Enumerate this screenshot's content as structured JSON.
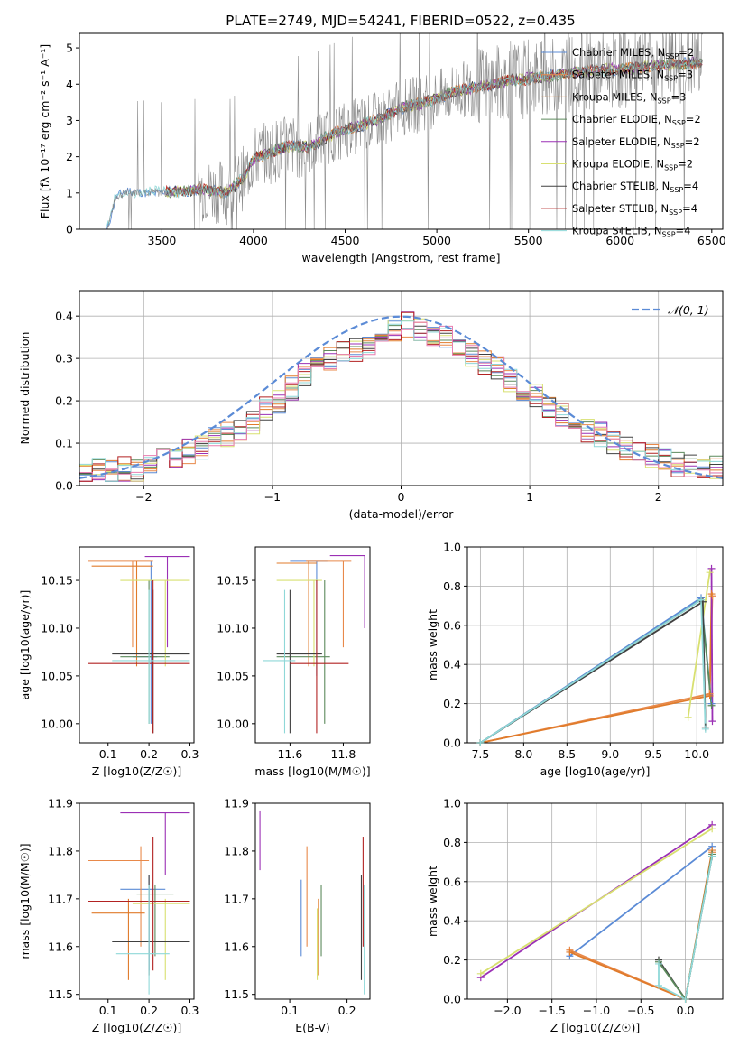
{
  "figure": {
    "title": "PLATE=2749, MJD=54241, FIBERID=0522, z=0.435"
  },
  "models": [
    {
      "name": "Chabrier MILES",
      "nssp": "2",
      "color": "#5b8bd6"
    },
    {
      "name": "Salpeter MILES",
      "nssp": "3",
      "color": "#e8894a"
    },
    {
      "name": "Kroupa MILES",
      "nssp": "3",
      "color": "#e07b2b"
    },
    {
      "name": "Chabrier ELODIE",
      "nssp": "2",
      "color": "#5c8a5c"
    },
    {
      "name": "Salpeter ELODIE",
      "nssp": "2",
      "color": "#9b30b5"
    },
    {
      "name": "Kroupa ELODIE",
      "nssp": "2",
      "color": "#d8e070"
    },
    {
      "name": "Chabrier STELIB",
      "nssp": "4",
      "color": "#404040"
    },
    {
      "name": "Salpeter STELIB",
      "nssp": "4",
      "color": "#b22222"
    },
    {
      "name": "Kroupa STELIB",
      "nssp": "4",
      "color": "#8fd8d8"
    }
  ],
  "extra_colors": {
    "pink": "#e87fb0",
    "teal": "#5fb3b3",
    "lime": "#b8d84a",
    "data": "#808080",
    "gauss": "#5b8bd6",
    "grid": "#b0b0b0"
  },
  "legend_template": {
    "nssp_sub": "SSP",
    "nssp_prefix": "N",
    "nssp_eq": "="
  },
  "chart_data": [
    {
      "id": "spectrum",
      "type": "line",
      "xlabel": "wavelength [Angstrom, rest frame]",
      "ylabel": "Flux [fλ 10⁻¹⁷ erg cm⁻² s⁻¹ A⁻¹]",
      "xlim": [
        3050,
        6560
      ],
      "ylim": [
        0,
        5.4
      ],
      "xticks": [
        3500,
        4000,
        4500,
        5000,
        5500,
        6000,
        6500
      ],
      "yticks": [
        0,
        1,
        2,
        3,
        4,
        5
      ],
      "legend": "upper right",
      "continuum_x": [
        3200,
        3250,
        3300,
        3400,
        3500,
        3600,
        3700,
        3800,
        3850,
        3900,
        3950,
        4000,
        4100,
        4200,
        4300,
        4400,
        4500,
        4600,
        4700,
        4800,
        4900,
        5000,
        5100,
        5200,
        5300,
        5400,
        5500,
        5600,
        5700,
        5800,
        5900,
        6000,
        6100,
        6200,
        6300,
        6400
      ],
      "continuum_y": [
        0,
        0.9,
        1.0,
        1.05,
        1.0,
        1.05,
        1.1,
        1.05,
        1.0,
        1.2,
        1.45,
        1.95,
        2.15,
        2.3,
        2.25,
        2.55,
        2.75,
        2.9,
        3.05,
        3.35,
        3.45,
        3.6,
        3.8,
        3.9,
        4.0,
        4.1,
        4.15,
        4.2,
        4.3,
        4.35,
        4.4,
        4.4,
        4.45,
        4.5,
        4.55,
        4.6
      ]
    },
    {
      "id": "residuals",
      "type": "step",
      "xlabel": "(data-model)/error",
      "ylabel": "Normed distribution",
      "xlim": [
        -2.5,
        2.5
      ],
      "ylim": [
        0,
        0.46
      ],
      "xticks": [
        -2,
        -1,
        0,
        1,
        2
      ],
      "yticks": [
        0,
        0.1,
        0.2,
        0.3,
        0.4
      ],
      "grid": true,
      "legend_label": "𝒩(0, 1)",
      "bins": 50,
      "model_hist": [
        0.035,
        0.04,
        0.03,
        0.04,
        0.035,
        0.045,
        0.06,
        0.07,
        0.08,
        0.09,
        0.11,
        0.12,
        0.13,
        0.15,
        0.18,
        0.2,
        0.23,
        0.26,
        0.28,
        0.3,
        0.31,
        0.32,
        0.33,
        0.35,
        0.37,
        0.38,
        0.37,
        0.36,
        0.35,
        0.33,
        0.31,
        0.29,
        0.28,
        0.25,
        0.23,
        0.21,
        0.19,
        0.17,
        0.15,
        0.13,
        0.12,
        0.1,
        0.09,
        0.08,
        0.07,
        0.06,
        0.05,
        0.045,
        0.04,
        0.04
      ]
    },
    {
      "id": "age_vs_Z",
      "type": "errorbar",
      "xlabel": "Z [log10(Z/Z☉)]",
      "ylabel": "age  [log10(age/yr)]",
      "xlim": [
        0.03,
        0.31
      ],
      "ylim": [
        9.98,
        10.185
      ],
      "xticks": [
        0.1,
        0.2,
        0.3
      ],
      "yticks": [
        10.0,
        10.05,
        10.1,
        10.15
      ],
      "points": [
        {
          "m": 0,
          "x": 0.205,
          "y": 10.07,
          "x0": 0.16,
          "x1": 0.22,
          "y0": 10.0,
          "y1": 10.17
        },
        {
          "m": 1,
          "x": 0.16,
          "y": 10.17,
          "x0": 0.05,
          "x1": 0.21,
          "y0": 10.08,
          "y1": 10.17
        },
        {
          "m": 2,
          "x": 0.17,
          "y": 10.165,
          "x0": 0.06,
          "x1": 0.21,
          "y0": 10.06,
          "y1": 10.17
        },
        {
          "m": 3,
          "x": 0.2,
          "y": 10.07,
          "x0": 0.13,
          "x1": 0.25,
          "y0": 10.0,
          "y1": 10.15
        },
        {
          "m": 4,
          "x": 0.245,
          "y": 10.175,
          "x0": 0.19,
          "x1": 0.3,
          "y0": 10.08,
          "y1": 10.175
        },
        {
          "m": 5,
          "x": 0.24,
          "y": 10.15,
          "x0": 0.13,
          "x1": 0.3,
          "y0": 10.06,
          "y1": 10.15
        },
        {
          "m": 6,
          "x": 0.21,
          "y": 10.073,
          "x0": 0.11,
          "x1": 0.3,
          "y0": 9.99,
          "y1": 10.14
        },
        {
          "m": 7,
          "x": 0.21,
          "y": 10.063,
          "x0": 0.05,
          "x1": 0.3,
          "y0": 9.99,
          "y1": 10.15
        },
        {
          "m": 8,
          "x": 0.2,
          "y": 10.066,
          "x0": 0.11,
          "x1": 0.3,
          "y0": 10.0,
          "y1": 10.14
        }
      ]
    },
    {
      "id": "age_vs_mass",
      "type": "errorbar",
      "xlabel": "mass [log10(M/M☉)]",
      "ylabel": "",
      "xlim": [
        11.47,
        11.9
      ],
      "ylim": [
        9.98,
        10.185
      ],
      "xticks": [
        11.6,
        11.8
      ],
      "yticks": [
        10.0,
        10.05,
        10.1,
        10.15
      ],
      "points": [
        {
          "m": 0,
          "x": 11.7,
          "y": 10.17,
          "x0": 11.6,
          "x1": 11.74,
          "y0": 10.05,
          "y1": 10.17
        },
        {
          "m": 1,
          "x": 11.8,
          "y": 10.17,
          "x0": 11.66,
          "x1": 11.83,
          "y0": 10.08,
          "y1": 10.17
        },
        {
          "m": 2,
          "x": 11.67,
          "y": 10.168,
          "x0": 11.55,
          "x1": 11.7,
          "y0": 10.06,
          "y1": 10.17
        },
        {
          "m": 3,
          "x": 11.73,
          "y": 10.07,
          "x0": 11.55,
          "x1": 11.75,
          "y0": 10.0,
          "y1": 10.15
        },
        {
          "m": 4,
          "x": 11.88,
          "y": 10.176,
          "x0": 11.75,
          "x1": 11.88,
          "y0": 10.1,
          "y1": 10.176
        },
        {
          "m": 5,
          "x": 11.69,
          "y": 10.15,
          "x0": 11.55,
          "x1": 11.72,
          "y0": 10.06,
          "y1": 10.15
        },
        {
          "m": 6,
          "x": 11.6,
          "y": 10.073,
          "x0": 11.55,
          "x1": 11.72,
          "y0": 9.99,
          "y1": 10.14
        },
        {
          "m": 7,
          "x": 11.7,
          "y": 10.063,
          "x0": 11.6,
          "x1": 11.82,
          "y0": 9.99,
          "y1": 10.15
        },
        {
          "m": 8,
          "x": 11.58,
          "y": 10.066,
          "x0": 11.5,
          "x1": 11.62,
          "y0": 9.99,
          "y1": 10.14
        }
      ]
    },
    {
      "id": "massweight_vs_age",
      "type": "line",
      "xlabel": "age  [log10(age/yr)]",
      "ylabel": "mass weight",
      "xlim": [
        7.35,
        10.3
      ],
      "ylim": [
        0,
        1.0
      ],
      "xticks": [
        7.5,
        8.0,
        8.5,
        9.0,
        9.5,
        10.0
      ],
      "yticks": [
        0.0,
        0.2,
        0.4,
        0.6,
        0.8,
        1.0
      ],
      "grid": true,
      "series": [
        {
          "m": 1,
          "x": [
            7.5,
            10.15,
            10.18
          ],
          "y": [
            0.0,
            0.25,
            0.75
          ]
        },
        {
          "m": 2,
          "x": [
            7.5,
            10.15,
            10.17
          ],
          "y": [
            0.0,
            0.24,
            0.76
          ]
        },
        {
          "m": 4,
          "x": [
            10.18,
            10.17
          ],
          "y": [
            0.11,
            0.89
          ]
        },
        {
          "m": 5,
          "x": [
            9.9,
            10.15
          ],
          "y": [
            0.13,
            0.87
          ]
        },
        {
          "m": 0,
          "x": [
            7.5,
            10.05,
            10.17
          ],
          "y": [
            0.0,
            0.74,
            0.2
          ]
        },
        {
          "m": 3,
          "x": [
            7.5,
            10.05,
            10.17
          ],
          "y": [
            0.0,
            0.73,
            0.19
          ]
        },
        {
          "m": 6,
          "x": [
            7.5,
            10.07,
            10.1
          ],
          "y": [
            0.0,
            0.72,
            0.08
          ]
        },
        {
          "m": 8,
          "x": [
            7.5,
            10.05,
            10.1
          ],
          "y": [
            0.0,
            0.73,
            0.07
          ]
        }
      ]
    },
    {
      "id": "mass_vs_Z",
      "type": "errorbar",
      "xlabel": "Z [log10(Z/Z☉)]",
      "ylabel": "mass [log10(M/M☉)]",
      "xlim": [
        0.03,
        0.31
      ],
      "ylim": [
        11.49,
        11.9
      ],
      "xticks": [
        0.1,
        0.2,
        0.3
      ],
      "yticks": [
        11.5,
        11.6,
        11.7,
        11.8,
        11.9
      ],
      "points": [
        {
          "m": 0,
          "x": 0.2,
          "y": 11.72,
          "x0": 0.13,
          "x1": 0.24,
          "y0": 11.55,
          "y1": 11.75
        },
        {
          "m": 1,
          "x": 0.18,
          "y": 11.78,
          "x0": 0.05,
          "x1": 0.2,
          "y0": 11.6,
          "y1": 11.81
        },
        {
          "m": 2,
          "x": 0.15,
          "y": 11.67,
          "x0": 0.06,
          "x1": 0.19,
          "y0": 11.53,
          "y1": 11.7
        },
        {
          "m": 3,
          "x": 0.215,
          "y": 11.71,
          "x0": 0.17,
          "x1": 0.26,
          "y0": 11.58,
          "y1": 11.73
        },
        {
          "m": 4,
          "x": 0.24,
          "y": 11.88,
          "x0": 0.13,
          "x1": 0.3,
          "y0": 11.75,
          "y1": 11.88
        },
        {
          "m": 5,
          "x": 0.24,
          "y": 11.69,
          "x0": 0.16,
          "x1": 0.3,
          "y0": 11.53,
          "y1": 11.7
        },
        {
          "m": 6,
          "x": 0.2,
          "y": 11.61,
          "x0": 0.11,
          "x1": 0.3,
          "y0": 11.54,
          "y1": 11.75
        },
        {
          "m": 7,
          "x": 0.21,
          "y": 11.695,
          "x0": 0.05,
          "x1": 0.3,
          "y0": 11.55,
          "y1": 11.83
        },
        {
          "m": 8,
          "x": 0.2,
          "y": 11.585,
          "x0": 0.12,
          "x1": 0.25,
          "y0": 11.5,
          "y1": 11.73
        }
      ]
    },
    {
      "id": "mass_vs_EBV",
      "type": "errorbar",
      "xlabel": "E(B-V)",
      "ylabel": "",
      "xlim": [
        0.04,
        0.24
      ],
      "ylim": [
        11.49,
        11.9
      ],
      "xticks": [
        0.1,
        0.2
      ],
      "yticks": [
        11.5,
        11.6,
        11.7,
        11.8,
        11.9
      ],
      "points": [
        {
          "m": 0,
          "x": 0.12,
          "y0": 11.58,
          "y1": 11.74
        },
        {
          "m": 1,
          "x": 0.13,
          "y0": 11.6,
          "y1": 11.81
        },
        {
          "m": 2,
          "x": 0.15,
          "y0": 11.54,
          "y1": 11.7
        },
        {
          "m": 3,
          "x": 0.155,
          "y0": 11.58,
          "y1": 11.73
        },
        {
          "m": 4,
          "x": 0.048,
          "y0": 11.76,
          "y1": 11.885
        },
        {
          "m": 5,
          "x": 0.148,
          "y0": 11.53,
          "y1": 11.68
        },
        {
          "m": 6,
          "x": 0.225,
          "y0": 11.53,
          "y1": 11.75
        },
        {
          "m": 7,
          "x": 0.228,
          "y0": 11.6,
          "y1": 11.83
        },
        {
          "m": 8,
          "x": 0.23,
          "y0": 11.5,
          "y1": 11.73
        }
      ]
    },
    {
      "id": "massweight_vs_Z",
      "type": "line",
      "xlabel": "Z [log10(Z/Z☉)]",
      "ylabel": "mass weight",
      "xlim": [
        -2.45,
        0.42
      ],
      "ylim": [
        0,
        1.0
      ],
      "xticks": [
        -2.0,
        -1.5,
        -1.0,
        -0.5,
        0.0
      ],
      "yticks": [
        0.0,
        0.2,
        0.4,
        0.6,
        0.8,
        1.0
      ],
      "grid": true,
      "series": [
        {
          "m": 4,
          "x": [
            -2.3,
            0.3
          ],
          "y": [
            0.11,
            0.89
          ]
        },
        {
          "m": 5,
          "x": [
            -2.3,
            0.3
          ],
          "y": [
            0.13,
            0.87
          ]
        },
        {
          "m": 0,
          "x": [
            -1.3,
            0.3
          ],
          "y": [
            0.22,
            0.78
          ]
        },
        {
          "m": 1,
          "x": [
            -1.3,
            0.0,
            0.3
          ],
          "y": [
            0.25,
            0.0,
            0.75
          ]
        },
        {
          "m": 2,
          "x": [
            -1.3,
            0.0,
            0.3
          ],
          "y": [
            0.24,
            0.0,
            0.76
          ]
        },
        {
          "m": 6,
          "x": [
            -0.3,
            0.0,
            0.3
          ],
          "y": [
            0.2,
            0.0,
            0.73
          ]
        },
        {
          "m": 3,
          "x": [
            -0.3,
            0.0,
            0.3
          ],
          "y": [
            0.19,
            0.0,
            0.74
          ]
        },
        {
          "m": 8,
          "x": [
            -0.3,
            -0.3,
            0.0,
            0.3
          ],
          "y": [
            0.18,
            0.07,
            0.0,
            0.73
          ]
        }
      ]
    }
  ]
}
